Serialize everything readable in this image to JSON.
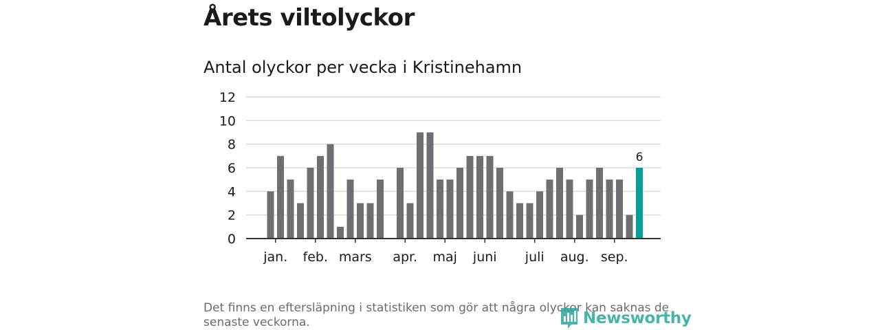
{
  "page": {
    "title": "Årets viltolyckor",
    "footnote": "Det finns en eftersläpning i statistiken som gör att några olyckor kan saknas de senaste veckorna.",
    "brand": "Newsworthy"
  },
  "colors": {
    "bar": "#6f6e73",
    "highlight": "#00a19a",
    "grid": "#d9d9d9",
    "axis": "#333333",
    "text": "#1a1a1a"
  },
  "chart_data": {
    "type": "bar",
    "title": "Antal olyckor per vecka i Kristinehamn",
    "xlabel": "",
    "ylabel": "",
    "ylim": [
      0,
      12
    ],
    "yticks": [
      0,
      2,
      4,
      6,
      8,
      10,
      12
    ],
    "grid": true,
    "weeks": [
      1,
      2,
      3,
      4,
      5,
      6,
      7,
      8,
      9,
      10,
      11,
      12,
      13,
      14,
      15,
      16,
      17,
      18,
      19,
      20,
      21,
      22,
      23,
      24,
      25,
      26,
      27,
      28,
      29,
      30,
      31,
      32,
      33,
      34,
      35,
      36,
      37,
      38
    ],
    "values": [
      4,
      7,
      5,
      3,
      6,
      7,
      8,
      1,
      5,
      3,
      3,
      5,
      null,
      6,
      3,
      9,
      9,
      5,
      5,
      6,
      7,
      7,
      7,
      6,
      4,
      3,
      3,
      4,
      5,
      6,
      5,
      2,
      5,
      6,
      5,
      5,
      2,
      6
    ],
    "highlight_index": 37,
    "highlight_label": "6",
    "month_ticks": [
      {
        "label": "jan.",
        "week": 1.5
      },
      {
        "label": "feb.",
        "week": 5.5
      },
      {
        "label": "mars",
        "week": 9.5
      },
      {
        "label": "apr.",
        "week": 14.5
      },
      {
        "label": "maj",
        "week": 18.5
      },
      {
        "label": "juni",
        "week": 22.5
      },
      {
        "label": "juli",
        "week": 27.5
      },
      {
        "label": "aug.",
        "week": 31.5
      },
      {
        "label": "sep.",
        "week": 35.5
      }
    ]
  }
}
